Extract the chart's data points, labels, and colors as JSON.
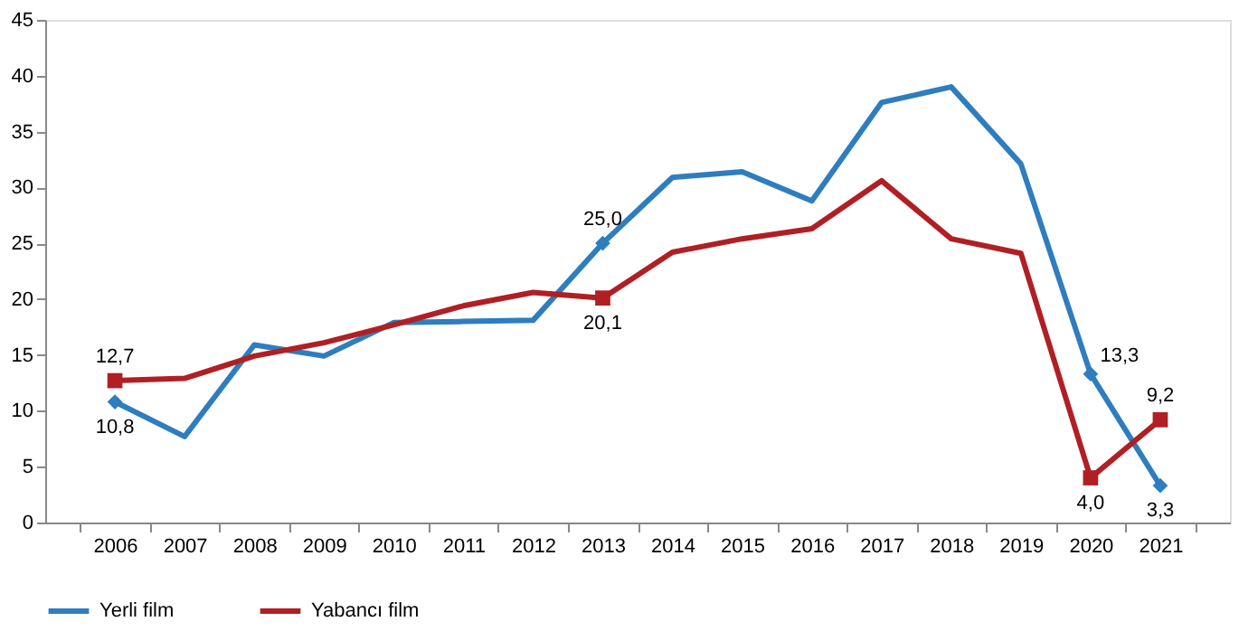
{
  "chart_data": {
    "type": "line",
    "categories": [
      "2006",
      "2007",
      "2008",
      "2009",
      "2010",
      "2011",
      "2012",
      "2013",
      "2014",
      "2015",
      "2016",
      "2017",
      "2018",
      "2019",
      "2020",
      "2021"
    ],
    "series": [
      {
        "name": "Yerli film",
        "color": "#2e7dbf",
        "values": [
          10.8,
          7.7,
          15.9,
          14.9,
          17.9,
          18.0,
          18.1,
          25.0,
          30.9,
          31.4,
          28.8,
          37.6,
          39.0,
          32.1,
          13.3,
          3.3
        ],
        "value_labels": [
          "10,8",
          null,
          null,
          null,
          null,
          null,
          null,
          "25,0",
          null,
          null,
          null,
          null,
          null,
          null,
          "13,3",
          "3,3"
        ]
      },
      {
        "name": "Yabancı film",
        "color": "#b01f24",
        "values": [
          12.7,
          12.9,
          14.9,
          16.1,
          17.7,
          19.4,
          20.6,
          20.1,
          24.2,
          25.4,
          26.3,
          30.6,
          25.4,
          24.1,
          4.0,
          9.2
        ],
        "value_labels": [
          "12,7",
          null,
          null,
          null,
          null,
          null,
          null,
          "20,1",
          null,
          null,
          null,
          null,
          null,
          null,
          "4,0",
          "9,2"
        ]
      }
    ],
    "ylim": [
      0,
      45
    ],
    "yticks": [
      0,
      5,
      10,
      15,
      20,
      25,
      30,
      35,
      40,
      45
    ],
    "grid": false,
    "legend": "bottom",
    "line_style": "solid"
  }
}
